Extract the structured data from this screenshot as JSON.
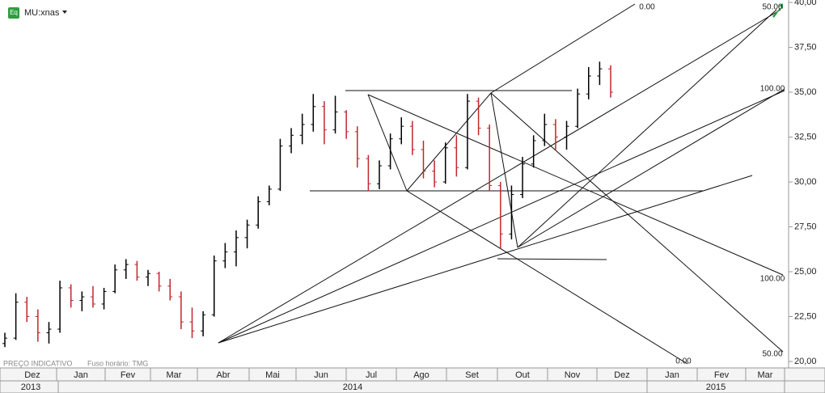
{
  "header": {
    "icon": "Eq",
    "symbol": "MU:xnas"
  },
  "footer": {
    "note": "PREÇO INDICATIVO",
    "timezone": "Fuso horário: TMG"
  },
  "chart_data": {
    "type": "ohlc",
    "up_color": "#000000",
    "down_color": "#c0272d",
    "ylim": [
      20,
      40
    ],
    "yticks": [
      {
        "value": 20,
        "label": "20,00"
      },
      {
        "value": 22.5,
        "label": "22,50"
      },
      {
        "value": 25,
        "label": "25,00"
      },
      {
        "value": 27.5,
        "label": "27,50"
      },
      {
        "value": 30,
        "label": "30,00"
      },
      {
        "value": 32.5,
        "label": "32,50"
      },
      {
        "value": 35,
        "label": "35,00"
      },
      {
        "value": 37.5,
        "label": "37,50"
      },
      {
        "value": 40,
        "label": "40,00"
      }
    ],
    "categories": [
      "Dez",
      "Jan",
      "Fev",
      "Mar",
      "Abr",
      "Mai",
      "Jun",
      "Jul",
      "Ago",
      "Set",
      "Out",
      "Nov",
      "Dez",
      "Jan",
      "Fev",
      "Mar"
    ],
    "years": [
      "2013",
      "2014",
      "2015"
    ],
    "fan_labels": [
      "0.00",
      "50.00",
      "100.00",
      "100.00",
      "50.00",
      "0.00"
    ],
    "ohlc": [
      [
        21.0,
        21.6,
        20.8,
        21.3
      ],
      [
        21.3,
        23.8,
        21.2,
        23.3
      ],
      [
        23.3,
        23.6,
        22.2,
        22.5
      ],
      [
        22.5,
        22.9,
        21.1,
        21.6
      ],
      [
        21.6,
        22.2,
        21.0,
        21.8
      ],
      [
        21.8,
        24.5,
        21.6,
        24.1
      ],
      [
        24.1,
        24.3,
        23.0,
        23.4
      ],
      [
        23.4,
        23.9,
        22.8,
        23.6
      ],
      [
        23.6,
        24.2,
        23.0,
        23.2
      ],
      [
        23.2,
        24.1,
        22.9,
        23.9
      ],
      [
        23.9,
        25.4,
        23.8,
        25.1
      ],
      [
        25.1,
        25.7,
        24.6,
        25.4
      ],
      [
        25.4,
        25.6,
        24.5,
        24.7
      ],
      [
        24.7,
        25.1,
        24.2,
        24.9
      ],
      [
        24.9,
        25.0,
        23.9,
        24.2
      ],
      [
        24.2,
        24.6,
        23.4,
        23.6
      ],
      [
        23.6,
        23.9,
        21.8,
        22.2
      ],
      [
        22.2,
        23.0,
        21.3,
        21.7
      ],
      [
        21.7,
        22.8,
        21.4,
        22.6
      ],
      [
        22.6,
        25.9,
        22.5,
        25.6
      ],
      [
        25.6,
        26.6,
        25.2,
        26.1
      ],
      [
        26.1,
        27.3,
        25.3,
        26.9
      ],
      [
        26.9,
        27.9,
        26.3,
        27.6
      ],
      [
        27.6,
        29.2,
        27.4,
        28.9
      ],
      [
        28.9,
        29.8,
        28.7,
        29.6
      ],
      [
        29.6,
        32.4,
        29.5,
        32.0
      ],
      [
        32.0,
        33.0,
        31.6,
        32.6
      ],
      [
        32.6,
        33.8,
        32.1,
        33.2
      ],
      [
        33.2,
        34.9,
        32.8,
        34.2
      ],
      [
        34.2,
        34.5,
        32.1,
        32.9
      ],
      [
        32.9,
        34.8,
        32.7,
        33.9
      ],
      [
        33.9,
        34.0,
        32.4,
        32.8
      ],
      [
        32.8,
        33.1,
        30.8,
        31.3
      ],
      [
        31.3,
        31.5,
        29.5,
        29.9
      ],
      [
        29.9,
        31.2,
        29.6,
        30.9
      ],
      [
        30.9,
        32.7,
        30.7,
        32.4
      ],
      [
        32.4,
        33.6,
        32.1,
        33.1
      ],
      [
        33.1,
        33.4,
        31.5,
        31.8
      ],
      [
        31.8,
        32.3,
        30.2,
        30.6
      ],
      [
        30.6,
        31.2,
        29.7,
        30.0
      ],
      [
        30.0,
        32.2,
        29.9,
        31.9
      ],
      [
        31.9,
        32.6,
        30.3,
        30.8
      ],
      [
        30.8,
        34.9,
        30.7,
        34.5
      ],
      [
        34.5,
        34.7,
        32.6,
        33.0
      ],
      [
        33.0,
        33.2,
        29.5,
        29.8
      ],
      [
        29.8,
        30.0,
        26.3,
        27.1
      ],
      [
        27.1,
        29.8,
        26.8,
        29.3
      ],
      [
        29.3,
        31.4,
        29.1,
        31.0
      ],
      [
        31.0,
        32.6,
        30.8,
        32.3
      ],
      [
        32.3,
        33.8,
        32.0,
        33.2
      ],
      [
        33.2,
        33.5,
        31.8,
        32.5
      ],
      [
        32.5,
        33.4,
        31.8,
        33.1
      ],
      [
        33.1,
        35.2,
        33.0,
        34.9
      ],
      [
        34.9,
        36.4,
        34.6,
        35.9
      ],
      [
        35.9,
        36.7,
        35.4,
        36.3
      ],
      [
        36.3,
        36.5,
        34.7,
        35.0
      ]
    ]
  }
}
